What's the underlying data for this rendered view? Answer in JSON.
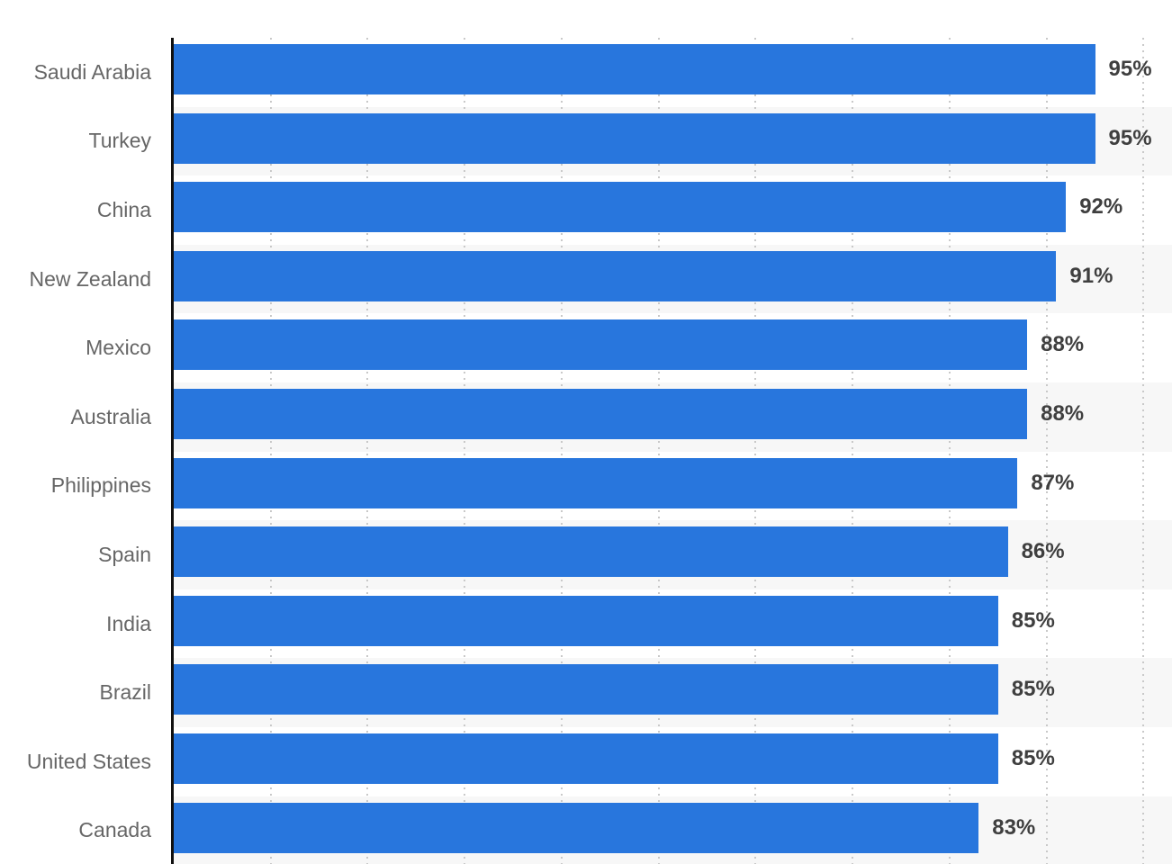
{
  "chart_data": {
    "type": "bar",
    "orientation": "horizontal",
    "categories": [
      "Saudi Arabia",
      "Turkey",
      "China",
      "New Zealand",
      "Mexico",
      "Australia",
      "Philippines",
      "Spain",
      "India",
      "Brazil",
      "United States",
      "Canada"
    ],
    "values": [
      95,
      95,
      92,
      91,
      88,
      88,
      87,
      86,
      85,
      85,
      85,
      83
    ],
    "value_labels": [
      "95%",
      "95%",
      "92%",
      "91%",
      "88%",
      "88%",
      "87%",
      "86%",
      "85%",
      "85%",
      "85%",
      "83%"
    ],
    "xlim": [
      0,
      100
    ],
    "gridline_interval": 10,
    "grid": "vertical-dotted",
    "legend": "none",
    "xlabel": "",
    "ylabel": ""
  },
  "colors": {
    "bar": "#2876dd",
    "row_band": "#f7f7f7",
    "gridline": "#c9c9c9",
    "axis": "#101010",
    "category_label": "#666666",
    "value_label": "#3f3f3f",
    "background": "#ffffff"
  }
}
